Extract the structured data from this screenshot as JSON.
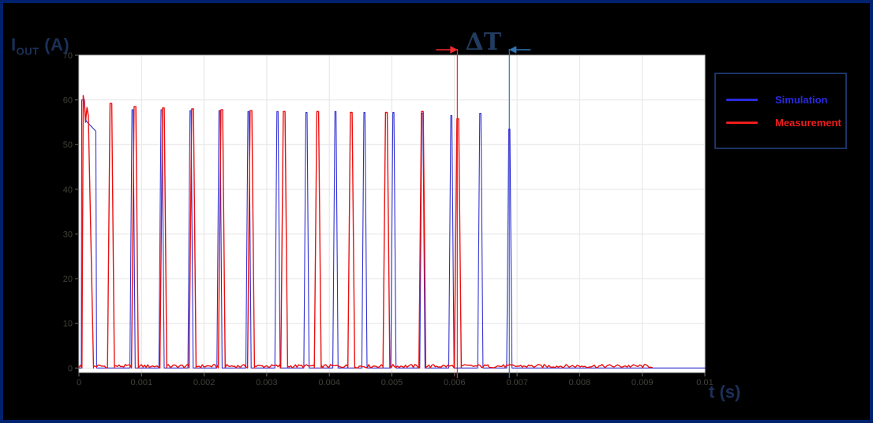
{
  "figure": {
    "background": "#000000",
    "border_color": "#00226e",
    "y_label_main": "I",
    "y_label_sub": "OUT",
    "y_label_unit": " (A)",
    "x_axis_label": "t (s)",
    "axis_label_color": "#1b3058",
    "annotation": {
      "label": "ΔT",
      "color": "#223c60"
    }
  },
  "legend": {
    "border_color": "#1c3468",
    "entries": [
      {
        "label": "Simulation",
        "color": "#2a2ae0"
      },
      {
        "label": "Measurement",
        "color": "#ee1c1c"
      }
    ]
  },
  "chart_data": {
    "type": "line",
    "title": "",
    "xlabel": "t (s)",
    "ylabel": "I_OUT (A)",
    "xlim": [
      0,
      0.01
    ],
    "ylim": [
      -1,
      70
    ],
    "grid": true,
    "grid_color": "#e4e4e4",
    "plot_bg": "#ffffff",
    "axis_box_color": "#cfcfcf",
    "tick_color": "#6f6f6f",
    "tick_label_color": "#42423a",
    "x_ticks": {
      "values": [
        0,
        0.001,
        0.002,
        0.003,
        0.004,
        0.005,
        0.006,
        0.007,
        0.008,
        0.009,
        0.01
      ],
      "labels": [
        "0",
        "0.001",
        "0.002",
        "0.003",
        "0.004",
        "0.005",
        "0.006",
        "0.007",
        "0.008",
        "0.009",
        "0.01"
      ]
    },
    "y_ticks": {
      "values": [
        0,
        10,
        20,
        30,
        40,
        50,
        60,
        70
      ],
      "labels": [
        "0",
        "10",
        "20",
        "30",
        "40",
        "50",
        "60",
        "70"
      ]
    },
    "legend_position": "upper right",
    "series": [
      {
        "name": "Simulation",
        "color": "#2f2fd0",
        "stroke_width": 1.1,
        "baseline": 0,
        "start_t": 0,
        "end_t": 0.01,
        "first_pulse_points": [
          [
            3.8e-05,
            0
          ],
          [
            4.4e-05,
            60
          ],
          [
            8.8e-05,
            60
          ],
          [
            0.000105,
            56
          ],
          [
            0.00012,
            55.2
          ],
          [
            0.00027,
            53
          ],
          [
            0.000283,
            0
          ]
        ],
        "pulse_times": [
          0.000857,
          0.00132,
          0.001783,
          0.002246,
          0.002709,
          0.003172,
          0.003635,
          0.004098,
          0.004561,
          0.005024,
          0.005487,
          0.00595,
          0.006413,
          0.006876
        ],
        "pulse_peaks": [
          57.8,
          57.8,
          57.6,
          57.6,
          57.4,
          57.4,
          57.2,
          57.4,
          57.2,
          57.2,
          57.0,
          56.5,
          57.0,
          53.5
        ],
        "pulse_half_base": 4.2e-05,
        "pulse_half_top": 9e-06,
        "noise": null
      },
      {
        "name": "Measurement",
        "color": "#ea1010",
        "stroke_width": 1.4,
        "baseline": 0.42,
        "start_t": 0,
        "end_t": 0.00917,
        "first_pulse_points": [
          [
            4.8e-05,
            0
          ],
          [
            6.8e-05,
            61
          ],
          [
            8.5e-05,
            59.5
          ],
          [
            0.000105,
            55
          ],
          [
            0.000128,
            58.3
          ],
          [
            0.00015,
            56.5
          ],
          [
            0.000233,
            0
          ]
        ],
        "pulse_times": [
          0.000511,
          0.000895,
          0.001349,
          0.001816,
          0.002282,
          0.002749,
          0.003279,
          0.003815,
          0.004351,
          0.004912,
          0.005486,
          0.006053
        ],
        "pulse_peaks": [
          59.2,
          58.5,
          58.2,
          58.0,
          57.8,
          57.6,
          57.4,
          57.4,
          57.2,
          57.2,
          57.4,
          55.8
        ],
        "pulse_half_base": 5.5e-05,
        "pulse_half_top": 1.4e-05,
        "noise": {
          "amplitude": 0.38,
          "step": 2.5e-05
        }
      }
    ],
    "markers": [
      {
        "t": 0.006045,
        "color": "#f42929",
        "arrow": "left",
        "series": "Measurement"
      },
      {
        "t": 0.006876,
        "color": "#2e75b6",
        "arrow": "right",
        "series": "Simulation"
      }
    ],
    "delta_label": "ΔT"
  }
}
